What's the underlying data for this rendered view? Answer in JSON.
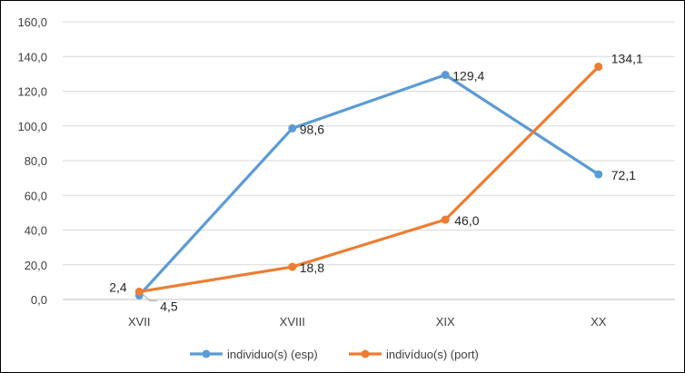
{
  "chart_data": {
    "type": "line",
    "title": "",
    "xlabel": "",
    "ylabel": "",
    "categories": [
      "XVII",
      "XVIII",
      "XIX",
      "XX"
    ],
    "ylim": [
      0,
      160
    ],
    "yticks": [
      0,
      20,
      40,
      60,
      80,
      100,
      120,
      140,
      160
    ],
    "ytick_labels": [
      "0,0",
      "20,0",
      "40,0",
      "60,0",
      "80,0",
      "100,0",
      "120,0",
      "140,0",
      "160,0"
    ],
    "grid": true,
    "legend_position": "bottom",
    "series": [
      {
        "name": "individuo(s) (esp)",
        "color": "#5B9BD5",
        "values": [
          2.4,
          98.6,
          129.4,
          72.1
        ],
        "labels": [
          "2,4",
          "98,6",
          "129,4",
          "72,1"
        ]
      },
      {
        "name": "indivíduo(s) (port)",
        "color": "#ED7D31",
        "values": [
          4.5,
          18.8,
          46.0,
          134.1
        ],
        "labels": [
          "4,5",
          "18,8",
          "46,0",
          "134,1"
        ]
      }
    ]
  }
}
